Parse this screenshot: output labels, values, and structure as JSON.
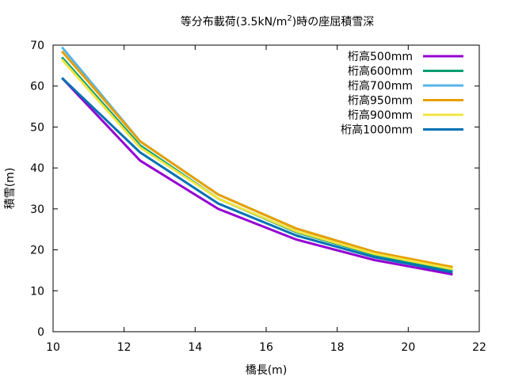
{
  "chart_data": {
    "type": "line",
    "title": "等分布載荷(3.5kN/m",
    "title_sup": "2",
    "title_suffix": ")時の座屈積雪深",
    "xlabel": "橋長(m)",
    "ylabel": "積雪(m)",
    "xlim": [
      10,
      22
    ],
    "ylim": [
      0,
      70
    ],
    "xticks": [
      "10",
      "12",
      "14",
      "16",
      "18",
      "20",
      "22"
    ],
    "yticks": [
      "0",
      "10",
      "20",
      "30",
      "40",
      "50",
      "60",
      "70"
    ],
    "legend_position": "top-right",
    "x": [
      10.25,
      12.45,
      14.65,
      16.85,
      19.05,
      21.25
    ],
    "series": [
      {
        "name": "桁高500mm",
        "color": "#9400d3",
        "values": [
          62.0,
          41.8,
          30.0,
          22.5,
          17.5,
          14.0
        ]
      },
      {
        "name": "桁高600mm",
        "color": "#009e73",
        "values": [
          67.0,
          45.5,
          32.5,
          24.3,
          18.8,
          15.0
        ]
      },
      {
        "name": "桁高700mm",
        "color": "#56b4e9",
        "values": [
          69.5,
          46.5,
          33.5,
          25.2,
          19.5,
          15.5
        ]
      },
      {
        "name": "桁高950mm",
        "color": "#e69f00",
        "values": [
          68.5,
          46.5,
          33.5,
          25.2,
          19.5,
          15.8
        ]
      },
      {
        "name": "桁高900mm",
        "color": "#f0e442",
        "values": [
          66.5,
          45.0,
          32.5,
          24.5,
          19.0,
          15.3
        ]
      },
      {
        "name": "桁高1000mm",
        "color": "#0072b2",
        "values": [
          62.0,
          43.8,
          31.3,
          23.5,
          18.2,
          14.5
        ]
      }
    ]
  }
}
